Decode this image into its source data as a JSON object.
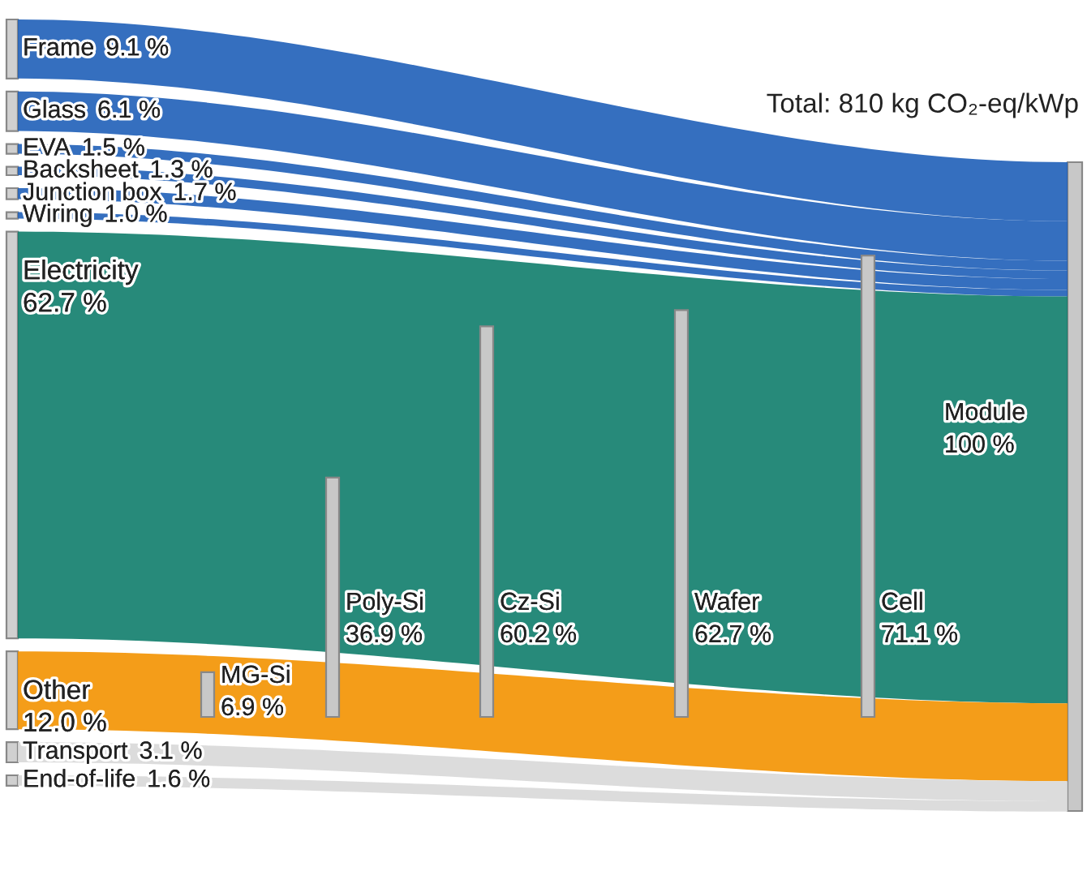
{
  "chart_data": {
    "type": "other",
    "title": "Total: 810 kg CO₂-eq/kWp",
    "categories": [
      "Frame",
      "Glass",
      "EVA",
      "Backsheet",
      "Junction box",
      "Wiring",
      "Electricity",
      "Other",
      "Transport",
      "End-of-life",
      "MG-Si",
      "Poly-Si",
      "Cz-Si",
      "Wafer",
      "Cell",
      "Module"
    ],
    "values": [
      9.1,
      6.1,
      1.5,
      1.3,
      1.7,
      1.0,
      62.7,
      12.0,
      3.1,
      1.6,
      6.9,
      36.9,
      60.2,
      62.7,
      71.1,
      100
    ],
    "value_labels": [
      "9.1 %",
      "6.1 %",
      "1.5 %",
      "1.3 %",
      "1.7 %",
      "1.0 %",
      "62.7 %",
      "12.0 %",
      "3.1 %",
      "1.6 %",
      "6.9 %",
      "36.9 %",
      "60.2 %",
      "62.7 %",
      "71.1 %",
      "100 %"
    ],
    "colors": [
      "#1f5fb8",
      "#1f5fb8",
      "#1f5fb8",
      "#1f5fb8",
      "#1f5fb8",
      "#1f5fb8",
      "#0f7d6b",
      "#f39200",
      "#d8d8d8",
      "#d8d8d8",
      "#c8c8c8",
      "#c8c8c8",
      "#c8c8c8",
      "#c8c8c8",
      "#c8c8c8",
      "#c8c8c8"
    ]
  }
}
